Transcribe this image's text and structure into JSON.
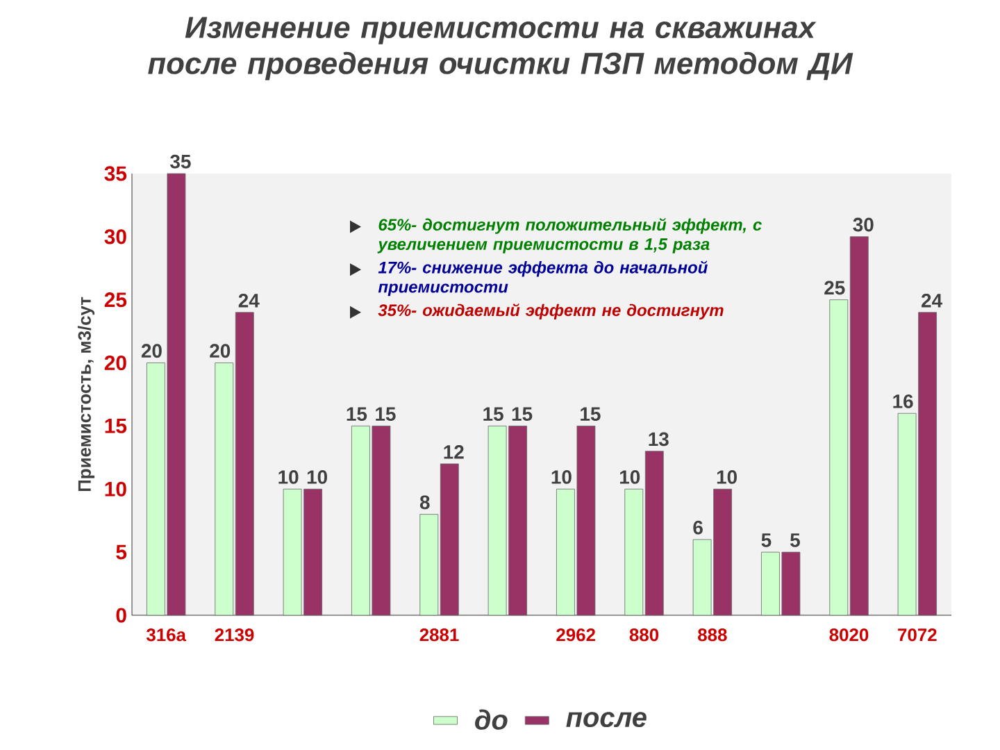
{
  "chart_data": {
    "type": "bar",
    "title": "Изменение приемистости на скважинах после проведения очистки ПЗП методом ДИ",
    "ylabel": "Приемистость, м3/сут",
    "categories": [
      "316а",
      "2139",
      null,
      null,
      "2881",
      null,
      "2962",
      "880",
      "888",
      null,
      "8020",
      "7072"
    ],
    "series": [
      {
        "name": "до",
        "color": "#ccffcc",
        "values": [
          20,
          20,
          10,
          15,
          8,
          15,
          10,
          10,
          6,
          5,
          25,
          16
        ]
      },
      {
        "name": "после",
        "color": "#993366",
        "values": [
          35,
          24,
          10,
          15,
          12,
          15,
          15,
          13,
          10,
          5,
          30,
          24
        ]
      }
    ],
    "ylim": [
      0,
      35
    ],
    "yticks": [
      0,
      5,
      10,
      15,
      20,
      25,
      30,
      35
    ],
    "data_labels": true,
    "legend": "bottom",
    "annotations": [
      "65%- достигнут положительный эффект, с увеличением приемистости в 1,5 раза",
      "17%- снижение эффекта до начальной приемистости",
      "35%- ожидаемый эффект не достигнут"
    ]
  }
}
